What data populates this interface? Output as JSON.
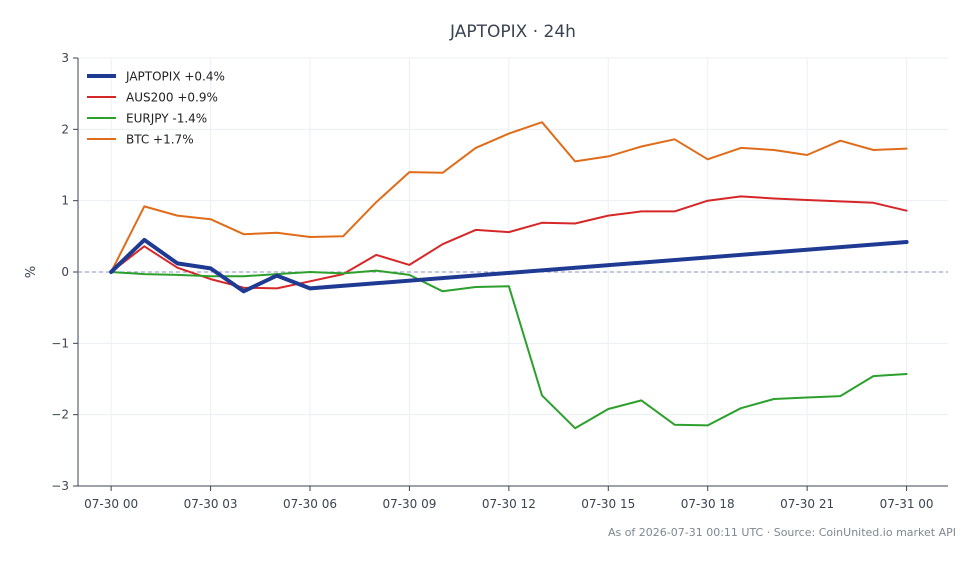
{
  "chart_data": {
    "type": "line",
    "title": "JAPTOPIX · 24h",
    "xlabel": "",
    "ylabel": "%",
    "ylim": [
      -3,
      3
    ],
    "yticks": [
      3,
      2,
      1,
      0,
      -1,
      -2,
      -3
    ],
    "ytick_labels": [
      "3",
      "2",
      "1",
      "0",
      "−1",
      "−2",
      "−3"
    ],
    "x_range": [
      "2026-07-29 23:00",
      "2026-07-31 01:15"
    ],
    "xticks": [
      "2026-07-30 00:00",
      "2026-07-30 03:00",
      "2026-07-30 06:00",
      "2026-07-30 09:00",
      "2026-07-30 12:00",
      "2026-07-30 15:00",
      "2026-07-30 18:00",
      "2026-07-30 21:00",
      "2026-07-31 00:00"
    ],
    "xtick_labels": [
      "07-30 00",
      "07-30 03",
      "07-30 06",
      "07-30 09",
      "07-30 12",
      "07-30 15",
      "07-30 18",
      "07-30 21",
      "07-31 00"
    ],
    "grid": true,
    "legend_position": "top-left",
    "zero_line": true,
    "series": [
      {
        "name": "JAPTOPIX +0.4%",
        "color": "#1f3a93",
        "emphasis": true,
        "x": [
          "2026-07-30 00:00",
          "2026-07-30 01:00",
          "2026-07-30 02:00",
          "2026-07-30 03:00",
          "2026-07-30 04:00",
          "2026-07-30 05:00",
          "2026-07-30 06:00",
          "2026-07-31 00:00"
        ],
        "y": [
          0.0,
          0.45,
          0.12,
          0.05,
          -0.27,
          -0.05,
          -0.23,
          0.42
        ]
      },
      {
        "name": "AUS200 +0.9%",
        "color": "#d62728",
        "x": [
          "2026-07-30 00:00",
          "2026-07-30 01:00",
          "2026-07-30 02:00",
          "2026-07-30 03:00",
          "2026-07-30 04:00",
          "2026-07-30 05:00",
          "2026-07-30 06:00",
          "2026-07-30 07:00",
          "2026-07-30 08:00",
          "2026-07-30 09:00",
          "2026-07-30 10:00",
          "2026-07-30 11:00",
          "2026-07-30 12:00",
          "2026-07-30 13:00",
          "2026-07-30 14:00",
          "2026-07-30 15:00",
          "2026-07-30 16:00",
          "2026-07-30 17:00",
          "2026-07-30 18:00",
          "2026-07-30 19:00",
          "2026-07-30 20:00",
          "2026-07-30 21:00",
          "2026-07-30 22:00",
          "2026-07-30 23:00",
          "2026-07-31 00:00"
        ],
        "y": [
          0.0,
          0.36,
          0.06,
          -0.1,
          -0.22,
          -0.23,
          -0.13,
          -0.03,
          0.24,
          0.1,
          0.39,
          0.59,
          0.56,
          0.69,
          0.68,
          0.79,
          0.85,
          0.85,
          1.0,
          1.06,
          1.03,
          1.01,
          0.99,
          0.97,
          0.86
        ]
      },
      {
        "name": "EURJPY -1.4%",
        "color": "#2ca02c",
        "x": [
          "2026-07-30 00:00",
          "2026-07-30 01:00",
          "2026-07-30 02:00",
          "2026-07-30 03:00",
          "2026-07-30 04:00",
          "2026-07-30 05:00",
          "2026-07-30 06:00",
          "2026-07-30 07:00",
          "2026-07-30 08:00",
          "2026-07-30 09:00",
          "2026-07-30 10:00",
          "2026-07-30 11:00",
          "2026-07-30 12:00",
          "2026-07-30 13:00",
          "2026-07-30 14:00",
          "2026-07-30 15:00",
          "2026-07-30 16:00",
          "2026-07-30 17:00",
          "2026-07-30 18:00",
          "2026-07-30 19:00",
          "2026-07-30 20:00",
          "2026-07-30 21:00",
          "2026-07-30 22:00",
          "2026-07-30 23:00",
          "2026-07-31 00:00"
        ],
        "y": [
          0.0,
          -0.03,
          -0.04,
          -0.06,
          -0.06,
          -0.03,
          0.0,
          -0.02,
          0.02,
          -0.04,
          -0.27,
          -0.21,
          -0.2,
          -1.73,
          -2.19,
          -1.92,
          -1.8,
          -2.14,
          -2.15,
          -1.91,
          -1.78,
          -1.76,
          -1.74,
          -1.46,
          -1.43
        ]
      },
      {
        "name": "BTC +1.7%",
        "color": "#e06c1a",
        "x": [
          "2026-07-30 00:00",
          "2026-07-30 01:00",
          "2026-07-30 02:00",
          "2026-07-30 03:00",
          "2026-07-30 04:00",
          "2026-07-30 05:00",
          "2026-07-30 06:00",
          "2026-07-30 07:00",
          "2026-07-30 08:00",
          "2026-07-30 09:00",
          "2026-07-30 10:00",
          "2026-07-30 11:00",
          "2026-07-30 12:00",
          "2026-07-30 13:00",
          "2026-07-30 14:00",
          "2026-07-30 15:00",
          "2026-07-30 16:00",
          "2026-07-30 17:00",
          "2026-07-30 18:00",
          "2026-07-30 19:00",
          "2026-07-30 20:00",
          "2026-07-30 21:00",
          "2026-07-30 22:00",
          "2026-07-30 23:00",
          "2026-07-31 00:00"
        ],
        "y": [
          0.0,
          0.92,
          0.79,
          0.74,
          0.53,
          0.55,
          0.49,
          0.5,
          0.98,
          1.4,
          1.39,
          1.74,
          1.94,
          2.1,
          1.55,
          1.62,
          1.76,
          1.86,
          1.58,
          1.74,
          1.71,
          1.64,
          1.84,
          1.71,
          1.73
        ]
      }
    ]
  },
  "footer_text": "As of 2026-07-31 00:11 UTC · Source: CoinUnited.io market API"
}
